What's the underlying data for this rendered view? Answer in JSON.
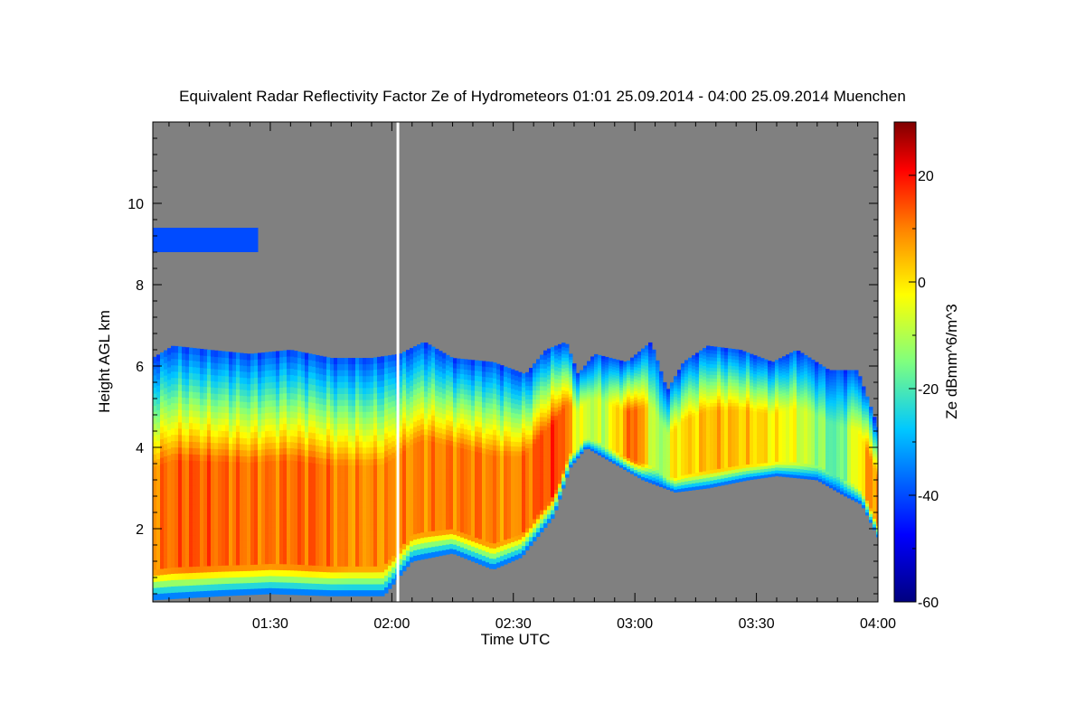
{
  "chart_data": {
    "type": "heatmap",
    "title": "Equivalent Radar Reflectivity Factor Ze of Hydrometeors   01:01 25.09.2014 - 04:00 25.09.2014 Muenchen",
    "xlabel": "Time UTC",
    "ylabel": "Height AGL km",
    "x_start": "01:01",
    "x_end": "04:00",
    "xlim_minutes": [
      61,
      240
    ],
    "x_ticks": [
      {
        "minute": 90,
        "label": "01:30"
      },
      {
        "minute": 120,
        "label": "02:00"
      },
      {
        "minute": 150,
        "label": "02:30"
      },
      {
        "minute": 180,
        "label": "03:00"
      },
      {
        "minute": 210,
        "label": "03:30"
      },
      {
        "minute": 240,
        "label": "04:00"
      }
    ],
    "ylim": [
      0.2,
      12
    ],
    "y_ticks": [
      {
        "value": 2,
        "label": "2"
      },
      {
        "value": 4,
        "label": "4"
      },
      {
        "value": 6,
        "label": "6"
      },
      {
        "value": 8,
        "label": "8"
      },
      {
        "value": 10,
        "label": "10"
      }
    ],
    "colorbar": {
      "label": "Ze dBmm^6/m^3",
      "range": [
        -60,
        30
      ],
      "ticks": [
        {
          "value": 20,
          "label": "20"
        },
        {
          "value": 0,
          "label": "0"
        },
        {
          "value": -20,
          "label": "-20"
        },
        {
          "value": -40,
          "label": "-40"
        },
        {
          "value": -60,
          "label": "-60"
        }
      ]
    },
    "background_color": "#808080",
    "data_gap_minute": 121.5,
    "cirrus_layer": {
      "start_min": 61,
      "end_min": 87,
      "bottom_km": 8.8,
      "top_km": 9.4,
      "ze_dbz": -40
    },
    "cloud_top_km": [
      [
        61,
        6.2
      ],
      [
        66,
        6.5
      ],
      [
        75,
        6.4
      ],
      [
        85,
        6.3
      ],
      [
        95,
        6.4
      ],
      [
        105,
        6.2
      ],
      [
        115,
        6.2
      ],
      [
        122,
        6.3
      ],
      [
        128,
        6.6
      ],
      [
        135,
        6.2
      ],
      [
        145,
        6.1
      ],
      [
        153,
        5.8
      ],
      [
        158,
        6.4
      ],
      [
        163,
        6.6
      ],
      [
        166,
        5.8
      ],
      [
        170,
        6.3
      ],
      [
        178,
        6.1
      ],
      [
        184,
        6.6
      ],
      [
        188,
        5.4
      ],
      [
        192,
        6.1
      ],
      [
        198,
        6.5
      ],
      [
        206,
        6.4
      ],
      [
        214,
        6.1
      ],
      [
        220,
        6.4
      ],
      [
        228,
        5.9
      ],
      [
        235,
        5.9
      ],
      [
        240,
        4.5
      ]
    ],
    "cloud_base_km": [
      [
        61,
        0.25
      ],
      [
        78,
        0.35
      ],
      [
        90,
        0.4
      ],
      [
        105,
        0.35
      ],
      [
        118,
        0.35
      ],
      [
        125,
        1.2
      ],
      [
        135,
        1.4
      ],
      [
        145,
        1.0
      ],
      [
        152,
        1.3
      ],
      [
        160,
        2.3
      ],
      [
        164,
        3.5
      ],
      [
        168,
        4.0
      ],
      [
        175,
        3.6
      ],
      [
        182,
        3.2
      ],
      [
        190,
        2.9
      ],
      [
        198,
        3.0
      ],
      [
        208,
        3.2
      ],
      [
        215,
        3.3
      ],
      [
        225,
        3.2
      ],
      [
        232,
        2.8
      ],
      [
        236,
        2.6
      ],
      [
        240,
        1.8
      ]
    ],
    "core_ze_by_time": [
      [
        61,
        10
      ],
      [
        70,
        14
      ],
      [
        80,
        12
      ],
      [
        90,
        11
      ],
      [
        100,
        13
      ],
      [
        110,
        9
      ],
      [
        120,
        9
      ],
      [
        130,
        10
      ],
      [
        140,
        11
      ],
      [
        150,
        9
      ],
      [
        158,
        15
      ],
      [
        162,
        16
      ],
      [
        166,
        -5
      ],
      [
        172,
        -10
      ],
      [
        180,
        15
      ],
      [
        186,
        -15
      ],
      [
        190,
        0
      ],
      [
        200,
        5
      ],
      [
        210,
        2
      ],
      [
        220,
        -5
      ],
      [
        230,
        -20
      ],
      [
        238,
        8
      ],
      [
        240,
        10
      ]
    ]
  }
}
